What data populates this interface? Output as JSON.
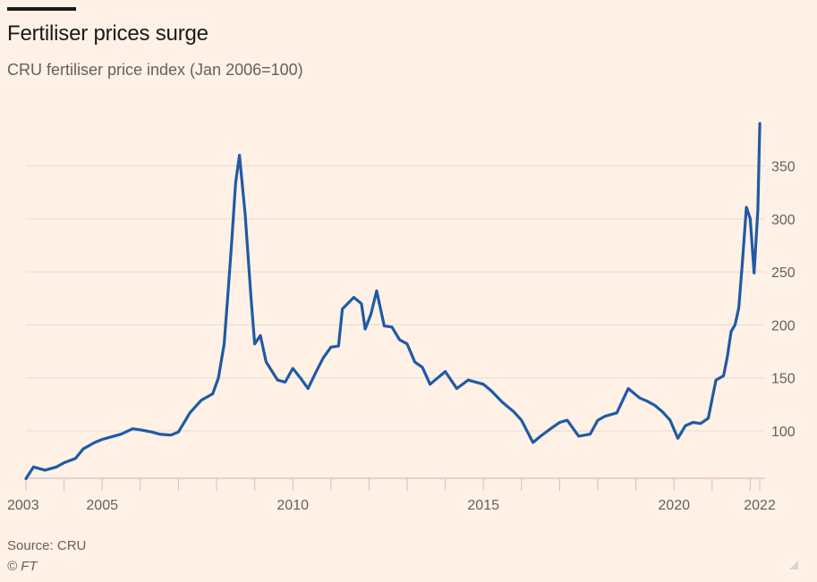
{
  "header": {
    "title": "Fertiliser prices surge",
    "subtitle": "CRU fertiliser price index (Jan 2006=100)"
  },
  "footer": {
    "source": "Source: CRU",
    "copyright": "© FT"
  },
  "colors": {
    "background": "#fff1e5",
    "line": "#1f5aa6",
    "grid": "#e9dfd6",
    "axis": "#cdc4bc",
    "text_muted": "#66605c"
  },
  "chart_data": {
    "type": "line",
    "title": "Fertiliser prices surge",
    "subtitle": "CRU fertiliser price index (Jan 2006=100)",
    "xlabel": "",
    "ylabel": "",
    "xlim": [
      2003,
      2022.25
    ],
    "ylim": [
      55,
      390
    ],
    "grid": true,
    "y_axis_side": "right",
    "y_ticks": [
      100,
      150,
      200,
      250,
      300,
      350
    ],
    "x_ticks": [
      2003,
      2004,
      2005,
      2006,
      2007,
      2008,
      2009,
      2010,
      2011,
      2012,
      2013,
      2014,
      2015,
      2016,
      2017,
      2018,
      2019,
      2020,
      2021,
      2022
    ],
    "x_tick_labels": [
      {
        "year": 2003,
        "label": "2003"
      },
      {
        "year": 2005,
        "label": "2005"
      },
      {
        "year": 2010,
        "label": "2010"
      },
      {
        "year": 2015,
        "label": "2015"
      },
      {
        "year": 2020,
        "label": "2020"
      },
      {
        "year": 2022,
        "label": "2022"
      }
    ],
    "series": [
      {
        "name": "CRU fertiliser price index",
        "x": [
          2003.0,
          2003.2,
          2003.5,
          2003.8,
          2004.0,
          2004.3,
          2004.5,
          2004.8,
          2005.0,
          2005.3,
          2005.5,
          2005.8,
          2006.0,
          2006.3,
          2006.5,
          2006.8,
          2007.0,
          2007.3,
          2007.6,
          2007.9,
          2008.05,
          2008.2,
          2008.3,
          2008.4,
          2008.5,
          2008.6,
          2008.75,
          2008.9,
          2009.0,
          2009.15,
          2009.3,
          2009.6,
          2009.8,
          2010.0,
          2010.2,
          2010.4,
          2010.6,
          2010.8,
          2011.0,
          2011.2,
          2011.3,
          2011.6,
          2011.8,
          2011.9,
          2012.05,
          2012.2,
          2012.4,
          2012.6,
          2012.8,
          2013.0,
          2013.2,
          2013.4,
          2013.6,
          2013.8,
          2014.0,
          2014.3,
          2014.6,
          2014.8,
          2015.0,
          2015.2,
          2015.5,
          2015.8,
          2016.0,
          2016.3,
          2016.5,
          2016.8,
          2017.0,
          2017.2,
          2017.5,
          2017.8,
          2018.0,
          2018.2,
          2018.5,
          2018.8,
          2019.1,
          2019.3,
          2019.5,
          2019.7,
          2019.9,
          2020.1,
          2020.3,
          2020.5,
          2020.7,
          2020.9,
          2021.0,
          2021.1,
          2021.3,
          2021.4,
          2021.5,
          2021.6,
          2021.7,
          2021.8,
          2021.9,
          2022.0,
          2022.1,
          2022.2,
          2022.25
        ],
        "values": [
          55,
          66,
          63,
          66,
          70,
          74,
          83,
          89,
          92,
          95,
          97,
          102,
          101,
          99,
          97,
          96,
          99,
          117,
          129,
          135,
          150,
          182,
          230,
          279,
          334,
          360,
          304,
          228,
          182,
          190,
          165,
          148,
          146,
          159,
          150,
          140,
          155,
          169,
          179,
          180,
          215,
          226,
          220,
          196,
          210,
          232,
          199,
          198,
          186,
          182,
          165,
          160,
          144,
          150,
          156,
          140,
          148,
          146,
          144,
          138,
          127,
          118,
          110,
          89,
          95,
          103,
          108,
          110,
          95,
          97,
          110,
          114,
          117,
          140,
          131,
          128,
          124,
          118,
          110,
          93,
          105,
          108,
          107,
          112,
          130,
          148,
          152,
          170,
          194,
          200,
          216,
          262,
          311,
          300,
          249,
          308,
          390
        ]
      }
    ]
  }
}
